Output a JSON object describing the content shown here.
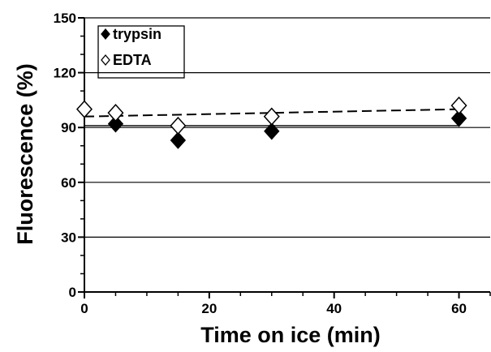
{
  "chart_data": {
    "type": "scatter",
    "xlabel": "Time on ice (min)",
    "ylabel": "Fluorescence (%)",
    "xlim": [
      0,
      65
    ],
    "ylim": [
      0,
      150
    ],
    "xticks": [
      0,
      20,
      40,
      60
    ],
    "yticks": [
      0,
      30,
      60,
      90,
      120,
      150
    ],
    "x_minor_step": 5,
    "y_minor_step": 10,
    "grid": "horizontal",
    "legend_position": "top-left",
    "series": [
      {
        "name": "trypsin",
        "marker": "filled-diamond",
        "x": [
          0,
          5,
          15,
          30,
          60
        ],
        "y": [
          100,
          92,
          83,
          88,
          95
        ],
        "trendline": {
          "style": "solid",
          "start": [
            0,
            91
          ],
          "end": [
            60,
            91
          ]
        }
      },
      {
        "name": "EDTA",
        "marker": "open-diamond",
        "x": [
          0,
          5,
          15,
          30,
          60
        ],
        "y": [
          100,
          98,
          91,
          96,
          102
        ],
        "trendline": {
          "style": "dashed",
          "start": [
            0,
            96
          ],
          "end": [
            60,
            100
          ]
        }
      }
    ]
  }
}
